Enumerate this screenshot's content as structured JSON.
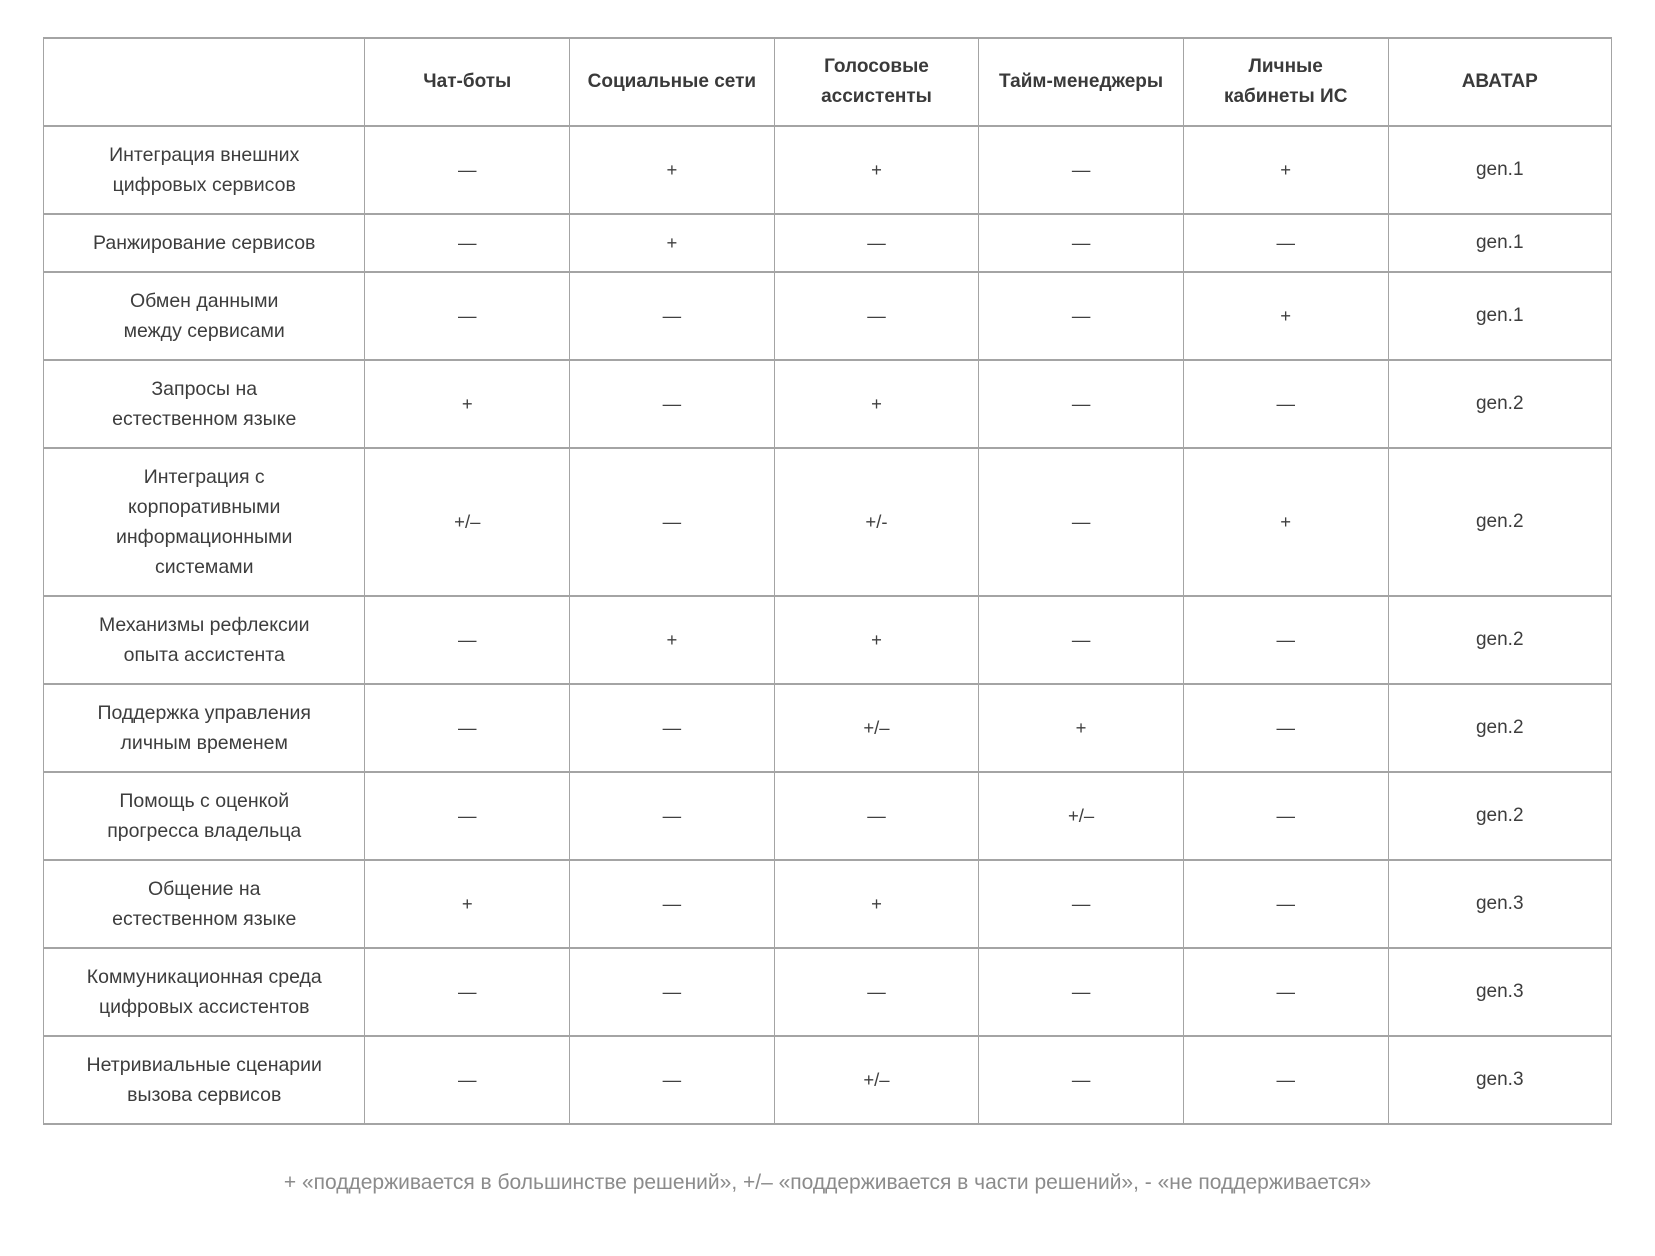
{
  "table": {
    "columns": [
      "",
      "Чат-боты",
      "Социальные сети",
      "Голосовые\nассистенты",
      "Тайм-менеджеры",
      "Личные\nкабинеты ИС",
      "АВАТАР"
    ],
    "highlight_colors": {
      "supported_blue": "#dbe5f1",
      "partial_gray": "#efefef"
    },
    "rows": [
      {
        "label": "Интеграция внешних\nцифровых сервисов",
        "values": [
          {
            "text": "—",
            "bg": "none"
          },
          {
            "text": "+",
            "bg": "blue"
          },
          {
            "text": "+",
            "bg": "blue"
          },
          {
            "text": "—",
            "bg": "none"
          },
          {
            "text": "+",
            "bg": "blue"
          }
        ],
        "avatar": "gen.1"
      },
      {
        "label": "Ранжирование сервисов",
        "values": [
          {
            "text": "—",
            "bg": "none"
          },
          {
            "text": "+",
            "bg": "blue"
          },
          {
            "text": "—",
            "bg": "none"
          },
          {
            "text": "—",
            "bg": "none"
          },
          {
            "text": "—",
            "bg": "none"
          }
        ],
        "avatar": "gen.1"
      },
      {
        "label": "Обмен данными\nмежду сервисами",
        "values": [
          {
            "text": "—",
            "bg": "none"
          },
          {
            "text": "—",
            "bg": "none"
          },
          {
            "text": "—",
            "bg": "none"
          },
          {
            "text": "—",
            "bg": "none"
          },
          {
            "text": "+",
            "bg": "blue"
          }
        ],
        "avatar": "gen.1"
      },
      {
        "label": "Запросы на\nестественном языке",
        "values": [
          {
            "text": "+",
            "bg": "blue"
          },
          {
            "text": "—",
            "bg": "none"
          },
          {
            "text": "+",
            "bg": "blue"
          },
          {
            "text": "—",
            "bg": "none"
          },
          {
            "text": "—",
            "bg": "none"
          }
        ],
        "avatar": "gen.2"
      },
      {
        "label": "Интеграция с\nкорпоративными\nинформационными\nсистемами",
        "values": [
          {
            "text": "+/–",
            "bg": "gray"
          },
          {
            "text": "—",
            "bg": "none"
          },
          {
            "text": "+/-",
            "bg": "gray"
          },
          {
            "text": "—",
            "bg": "none"
          },
          {
            "text": "+",
            "bg": "blue"
          }
        ],
        "avatar": "gen.2"
      },
      {
        "label": "Механизмы рефлексии\nопыта ассистента",
        "values": [
          {
            "text": "—",
            "bg": "none"
          },
          {
            "text": "+",
            "bg": "blue"
          },
          {
            "text": "+",
            "bg": "blue"
          },
          {
            "text": "—",
            "bg": "none"
          },
          {
            "text": "—",
            "bg": "none"
          }
        ],
        "avatar": "gen.2"
      },
      {
        "label": "Поддержка управления\nличным временем",
        "values": [
          {
            "text": "—",
            "bg": "none"
          },
          {
            "text": "—",
            "bg": "none"
          },
          {
            "text": "+/–",
            "bg": "gray"
          },
          {
            "text": "+",
            "bg": "blue"
          },
          {
            "text": "—",
            "bg": "none"
          }
        ],
        "avatar": "gen.2"
      },
      {
        "label": "Помощь с оценкой\nпрогресса владельца",
        "values": [
          {
            "text": "—",
            "bg": "none"
          },
          {
            "text": "—",
            "bg": "none"
          },
          {
            "text": "—",
            "bg": "none"
          },
          {
            "text": "+/–",
            "bg": "gray"
          },
          {
            "text": "—",
            "bg": "none"
          }
        ],
        "avatar": "gen.2"
      },
      {
        "label": "Общение на\nестественном языке",
        "values": [
          {
            "text": "+",
            "bg": "blue"
          },
          {
            "text": "—",
            "bg": "none"
          },
          {
            "text": "+",
            "bg": "blue"
          },
          {
            "text": "—",
            "bg": "none"
          },
          {
            "text": "—",
            "bg": "none"
          }
        ],
        "avatar": "gen.3"
      },
      {
        "label": "Коммуникационная среда\nцифровых ассистентов",
        "values": [
          {
            "text": "—",
            "bg": "none"
          },
          {
            "text": "—",
            "bg": "none"
          },
          {
            "text": "—",
            "bg": "none"
          },
          {
            "text": "—",
            "bg": "none"
          },
          {
            "text": "—",
            "bg": "none"
          }
        ],
        "avatar": "gen.3"
      },
      {
        "label": "Нетривиальные сценарии\nвызова сервисов",
        "values": [
          {
            "text": "—",
            "bg": "none"
          },
          {
            "text": "—",
            "bg": "none"
          },
          {
            "text": "+/–",
            "bg": "gray"
          },
          {
            "text": "—",
            "bg": "none"
          },
          {
            "text": "—",
            "bg": "none"
          }
        ],
        "avatar": "gen.3"
      }
    ]
  },
  "legend": "+ «поддерживается в большинстве решений», +/– «поддерживается в части решений», - «не поддерживается»"
}
